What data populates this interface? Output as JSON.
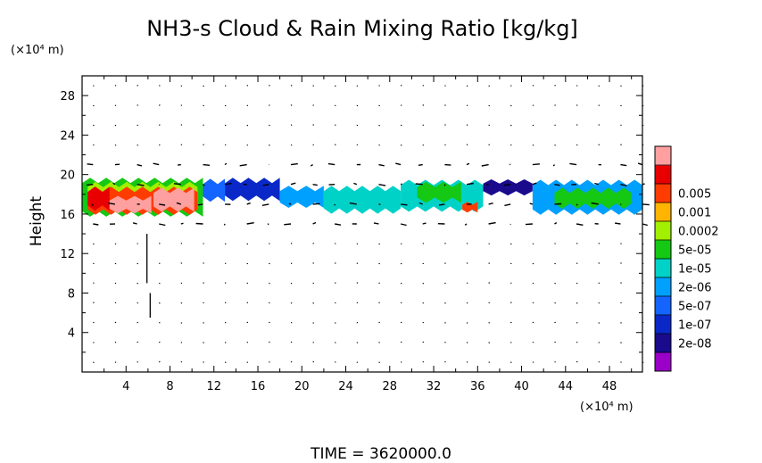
{
  "chart_data": {
    "type": "heatmap",
    "title": "NH3-s Cloud & Rain Mixing Ratio [kg/kg]",
    "ylabel": "Height",
    "y_unit_label": "(×10⁴ m)",
    "x_unit_label": "(×10⁴ m)",
    "footer": "TIME  =  3620000.0",
    "xlim": [
      0,
      51
    ],
    "ylim": [
      0,
      30
    ],
    "x_ticks": [
      4,
      8,
      12,
      16,
      20,
      24,
      28,
      32,
      36,
      40,
      44,
      48
    ],
    "x_tick_labels": [
      "4",
      "8",
      "12",
      "16",
      "20",
      "24",
      "28",
      "32",
      "36",
      "40",
      "44",
      "48"
    ],
    "y_ticks": [
      4,
      8,
      12,
      16,
      20,
      24,
      28
    ],
    "y_tick_labels": [
      "4",
      "8",
      "12",
      "16",
      "20",
      "24",
      "28"
    ],
    "colorbar": {
      "colors": [
        "#9a00c8",
        "#1a0a8c",
        "#0a28c8",
        "#1464ff",
        "#00a0ff",
        "#00d2c8",
        "#14c814",
        "#a0f000",
        "#ffb400",
        "#ff3c00",
        "#e80000",
        "#ffa0a0"
      ],
      "labels": [
        "2e-08",
        "1e-07",
        "5e-07",
        "2e-06",
        "1e-05",
        "5e-05",
        "0.0002",
        "0.001",
        "0.005"
      ],
      "label_level_indices": [
        1,
        2,
        3,
        4,
        5,
        6,
        7,
        8,
        9
      ]
    },
    "cloud_layer": [
      {
        "x0": 0,
        "x1": 11,
        "ybot": 16.0,
        "ytop": 19.4,
        "level": 6
      },
      {
        "x0": 0.5,
        "x1": 10.5,
        "ybot": 16.3,
        "ytop": 19.0,
        "level": 7
      },
      {
        "x0": 0.5,
        "x1": 10.5,
        "ybot": 16.2,
        "ytop": 18.5,
        "level": 9
      },
      {
        "x0": 0.5,
        "x1": 2.5,
        "ybot": 16.6,
        "ytop": 18.5,
        "level": 10
      },
      {
        "x0": 2.5,
        "x1": 6.3,
        "ybot": 16.3,
        "ytop": 17.6,
        "level": 11
      },
      {
        "x0": 6.5,
        "x1": 10.2,
        "ybot": 16.5,
        "ytop": 18.4,
        "level": 11
      },
      {
        "x0": 11,
        "x1": 13,
        "ybot": 17.5,
        "ytop": 19.3,
        "level": 3
      },
      {
        "x0": 13,
        "x1": 18,
        "ybot": 17.6,
        "ytop": 19.4,
        "level": 2
      },
      {
        "x0": 18,
        "x1": 22,
        "ybot": 16.9,
        "ytop": 18.6,
        "level": 4
      },
      {
        "x0": 22,
        "x1": 29,
        "ybot": 16.3,
        "ytop": 18.6,
        "level": 5
      },
      {
        "x0": 29,
        "x1": 36.5,
        "ybot": 16.5,
        "ytop": 19.2,
        "level": 5
      },
      {
        "x0": 30.5,
        "x1": 34.5,
        "ybot": 17.4,
        "ytop": 19.0,
        "level": 6
      },
      {
        "x0": 34.6,
        "x1": 36.0,
        "ybot": 16.3,
        "ytop": 17.1,
        "level": 9
      },
      {
        "x0": 36.5,
        "x1": 41,
        "ybot": 18.1,
        "ytop": 19.3,
        "level": 1
      },
      {
        "x0": 41,
        "x1": 51,
        "ybot": 16.2,
        "ytop": 19.2,
        "level": 4
      },
      {
        "x0": 43,
        "x1": 50,
        "ybot": 16.8,
        "ytop": 18.4,
        "level": 6
      }
    ]
  }
}
